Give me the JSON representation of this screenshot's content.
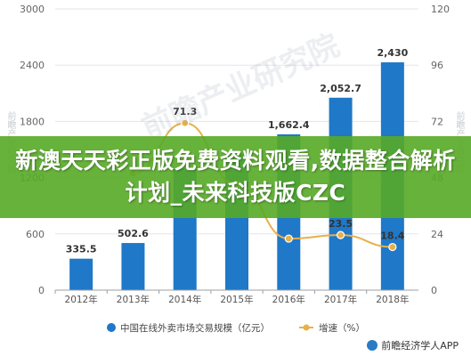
{
  "chart_data": {
    "type": "bar",
    "categories": [
      "2012年",
      "2013年",
      "2014年",
      "2015年",
      "2016年",
      "2017年",
      "2018年"
    ],
    "series": [
      {
        "name": "中国在线外卖市场交易规模（亿元）",
        "type": "bar",
        "axis": "left",
        "color": "#1f78c8",
        "values": [
          335.5,
          502.6,
          1300,
          1450,
          1662.4,
          2052.7,
          2430
        ],
        "labels": [
          "335.5",
          "502.6",
          "",
          "",
          "1,662.4",
          "2,052.7",
          "2,430"
        ]
      },
      {
        "name": "增速（%）",
        "type": "line",
        "axis": "right",
        "color": "#e8b04a",
        "values": [
          null,
          49.8,
          71.3,
          45,
          22,
          23.5,
          18.4
        ],
        "labels": [
          "",
          "",
          "71.3",
          "",
          "",
          "23.5",
          "18.4"
        ]
      }
    ],
    "y_left": {
      "min": 0,
      "max": 3000,
      "ticks": [
        0,
        600,
        1200,
        1800,
        2400,
        3000
      ]
    },
    "y_right": {
      "min": 0,
      "max": 120,
      "ticks": [
        0,
        24,
        48,
        72,
        96,
        120
      ]
    },
    "grid": true,
    "legend_position": "bottom"
  },
  "overlay": {
    "banner_text": "新澳天天彩正版免费资料观看,数据整合解析计划_未来科技版CZC"
  },
  "watermarks": {
    "center": "前瞻产业研究院",
    "side": "前瞻产业研究院",
    "footer": "前瞻经济学人APP"
  }
}
